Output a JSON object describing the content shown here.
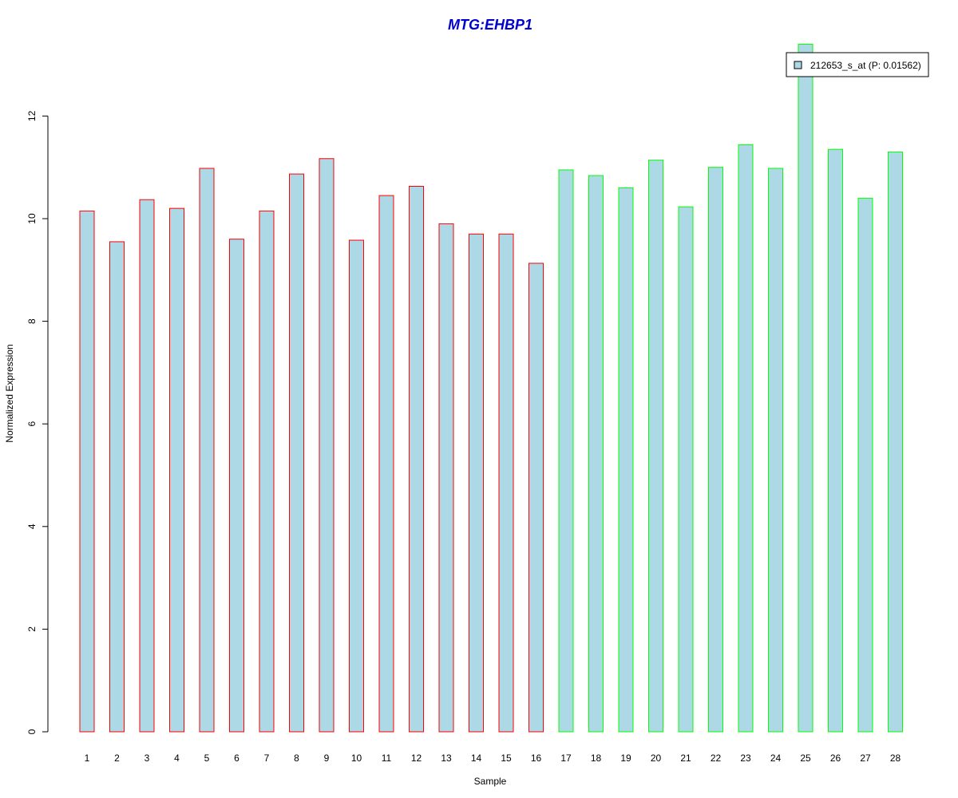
{
  "chart_data": {
    "type": "bar",
    "title": "MTG:EHBP1",
    "xlabel": "Sample",
    "ylabel": "Normalized Expression",
    "categories": [
      "1",
      "2",
      "3",
      "4",
      "5",
      "6",
      "7",
      "8",
      "9",
      "10",
      "11",
      "12",
      "13",
      "14",
      "15",
      "16",
      "17",
      "18",
      "19",
      "20",
      "21",
      "22",
      "23",
      "24",
      "25",
      "26",
      "27",
      "28"
    ],
    "series": [
      {
        "name": "212653_s_at (P: 0.01562)",
        "values": [
          10.15,
          9.55,
          10.37,
          10.2,
          10.98,
          9.6,
          10.15,
          10.87,
          11.17,
          9.58,
          10.45,
          10.63,
          9.9,
          9.7,
          9.7,
          9.13,
          10.95,
          10.84,
          10.6,
          11.14,
          10.23,
          11.0,
          11.44,
          10.98,
          13.4,
          11.35,
          10.4,
          11.3
        ]
      }
    ],
    "groups": [
      {
        "samples": "1-16",
        "outline_color": "#ff0000"
      },
      {
        "samples": "17-28",
        "outline_color": "#00ff00"
      }
    ],
    "yticks": [
      0,
      2,
      4,
      6,
      8,
      10,
      12
    ],
    "ylim": [
      0,
      13.4
    ],
    "grid": false,
    "legend_position": "top-right",
    "colors": {
      "bar_fill": "#add8e6",
      "title": "#0000cd",
      "axis": "#000000"
    }
  }
}
